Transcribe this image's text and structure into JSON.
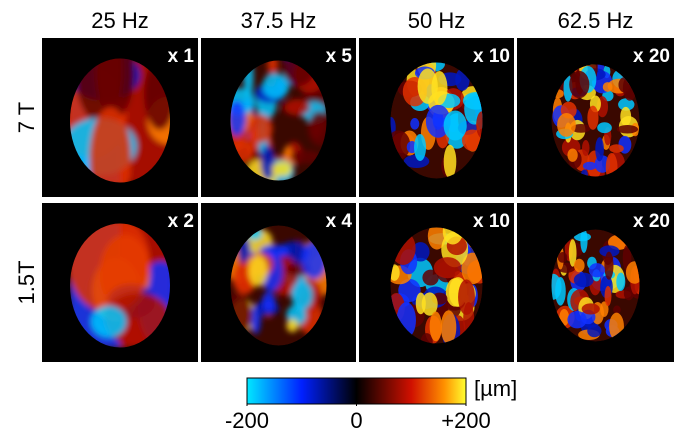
{
  "columns": [
    "25 Hz",
    "37.5 Hz",
    "50 Hz",
    "62.5 Hz"
  ],
  "rows": [
    {
      "label": "7 T",
      "scales": [
        "x 1",
        "x 5",
        "x 10",
        "x 20"
      ]
    },
    {
      "label": "1.5T",
      "scales": [
        "x 2",
        "x 4",
        "x 10",
        "x 20"
      ]
    }
  ],
  "colorbar": {
    "lim": [
      -200,
      200
    ],
    "ticks": [
      -200,
      0,
      {
        "value": 200,
        "label": "+200"
      }
    ],
    "unit": "[µm]"
  }
}
